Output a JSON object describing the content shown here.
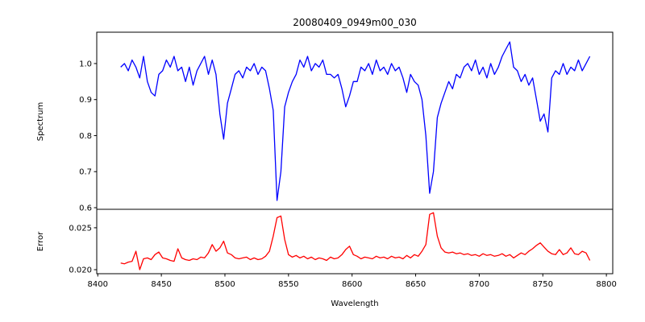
{
  "chart_data": [
    {
      "type": "line",
      "title": "20080409_0949m00_030",
      "xlabel": "",
      "ylabel": "Spectrum",
      "xlim": [
        8399.2,
        8805
      ],
      "ylim": [
        0.5955,
        1.087
      ],
      "yticks": [
        0.6,
        0.7,
        0.8,
        0.9,
        1.0
      ],
      "ytick_labels": [
        "0.6",
        "0.7",
        "0.8",
        "0.9",
        "1.0"
      ],
      "grid": false,
      "series": [
        {
          "name": "Spectrum",
          "color": "#0000ff",
          "x_start": 8418,
          "x_step": 3,
          "values": [
            0.99,
            1.0,
            0.98,
            1.01,
            0.99,
            0.96,
            1.02,
            0.95,
            0.92,
            0.91,
            0.97,
            0.98,
            1.01,
            0.99,
            1.02,
            0.98,
            0.99,
            0.95,
            0.99,
            0.94,
            0.98,
            1.0,
            1.02,
            0.97,
            1.01,
            0.97,
            0.86,
            0.79,
            0.89,
            0.93,
            0.97,
            0.98,
            0.96,
            0.99,
            0.98,
            1.0,
            0.97,
            0.99,
            0.98,
            0.93,
            0.87,
            0.62,
            0.7,
            0.88,
            0.92,
            0.95,
            0.97,
            1.01,
            0.99,
            1.02,
            0.98,
            1.0,
            0.99,
            1.01,
            0.97,
            0.97,
            0.96,
            0.97,
            0.93,
            0.88,
            0.91,
            0.95,
            0.95,
            0.99,
            0.98,
            1.0,
            0.97,
            1.01,
            0.98,
            0.99,
            0.97,
            1.0,
            0.98,
            0.99,
            0.96,
            0.92,
            0.97,
            0.95,
            0.94,
            0.9,
            0.8,
            0.64,
            0.7,
            0.85,
            0.89,
            0.92,
            0.95,
            0.93,
            0.97,
            0.96,
            0.99,
            1.0,
            0.98,
            1.01,
            0.97,
            0.99,
            0.96,
            1.0,
            0.97,
            0.99,
            1.02,
            1.04,
            1.06,
            0.99,
            0.98,
            0.95,
            0.97,
            0.94,
            0.96,
            0.9,
            0.84,
            0.86,
            0.81,
            0.96,
            0.98,
            0.97,
            1.0,
            0.97,
            0.99,
            0.98,
            1.01,
            0.98,
            1.0,
            1.02
          ]
        }
      ]
    },
    {
      "type": "line",
      "title": "",
      "xlabel": "Wavelength",
      "ylabel": "Error",
      "xlim": [
        8399.2,
        8805
      ],
      "ylim": [
        0.01952,
        0.0272
      ],
      "xticks": [
        8400,
        8450,
        8500,
        8550,
        8600,
        8650,
        8700,
        8750,
        8800
      ],
      "xtick_labels": [
        "8400",
        "8450",
        "8500",
        "8550",
        "8600",
        "8650",
        "8700",
        "8750",
        "8800"
      ],
      "yticks": [
        0.02,
        0.025
      ],
      "ytick_labels": [
        "0.020",
        "0.025"
      ],
      "grid": false,
      "series": [
        {
          "name": "Error",
          "color": "#ff0000",
          "x_start": 8418,
          "x_step": 3,
          "values": [
            0.0208,
            0.0207,
            0.0209,
            0.021,
            0.0222,
            0.02,
            0.0213,
            0.0214,
            0.0212,
            0.0218,
            0.0221,
            0.0214,
            0.0213,
            0.0211,
            0.021,
            0.0225,
            0.0214,
            0.0212,
            0.0211,
            0.0213,
            0.0212,
            0.0215,
            0.0214,
            0.022,
            0.023,
            0.0222,
            0.0226,
            0.0234,
            0.022,
            0.0218,
            0.0214,
            0.0213,
            0.0214,
            0.0215,
            0.0212,
            0.0214,
            0.0212,
            0.0213,
            0.0216,
            0.0222,
            0.024,
            0.0262,
            0.0264,
            0.0236,
            0.0218,
            0.0215,
            0.0217,
            0.0214,
            0.0216,
            0.0213,
            0.0215,
            0.0212,
            0.0214,
            0.0213,
            0.0211,
            0.0215,
            0.0213,
            0.0214,
            0.0218,
            0.0224,
            0.0228,
            0.0218,
            0.0216,
            0.0213,
            0.0215,
            0.0214,
            0.0213,
            0.0216,
            0.0214,
            0.0215,
            0.0213,
            0.0216,
            0.0214,
            0.0215,
            0.0213,
            0.0217,
            0.0214,
            0.0218,
            0.0216,
            0.0222,
            0.023,
            0.0266,
            0.0268,
            0.024,
            0.0226,
            0.0221,
            0.022,
            0.0221,
            0.0219,
            0.022,
            0.0218,
            0.0219,
            0.0217,
            0.0218,
            0.0216,
            0.0219,
            0.0217,
            0.0218,
            0.0216,
            0.0217,
            0.0219,
            0.0216,
            0.0218,
            0.0214,
            0.0217,
            0.022,
            0.0218,
            0.0222,
            0.0225,
            0.0229,
            0.0232,
            0.0227,
            0.0222,
            0.0219,
            0.0218,
            0.0224,
            0.0218,
            0.022,
            0.0226,
            0.0219,
            0.0218,
            0.0222,
            0.022,
            0.0211
          ]
        }
      ]
    }
  ]
}
